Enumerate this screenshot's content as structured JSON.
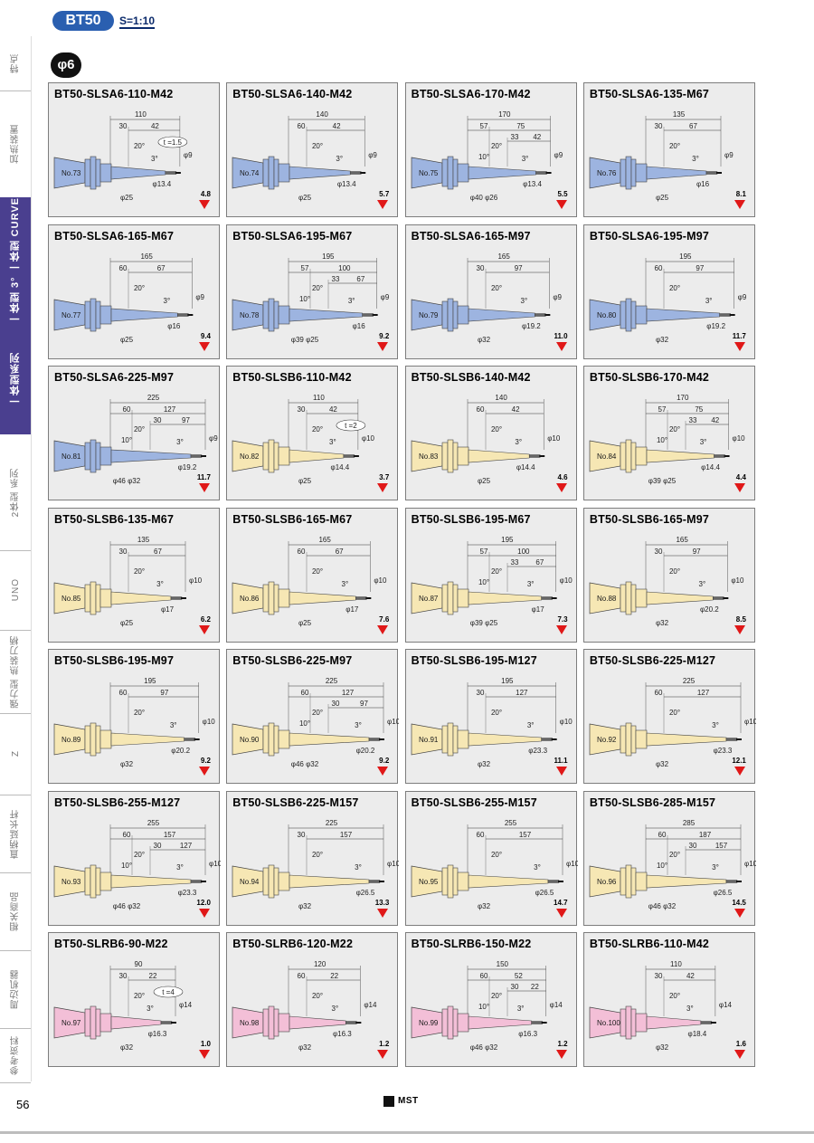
{
  "header": {
    "series": "BT50",
    "scale": "S=1:10",
    "diameter_badge": "φ6"
  },
  "side_tabs": [
    {
      "label": "特点",
      "active": false
    },
    {
      "label": "加热装置",
      "active": false
    },
    {
      "label": "一体型 3° 一体型 CURVE",
      "active": true
    },
    {
      "label": "一体型系列",
      "active": true
    },
    {
      "label": "2体型 系列",
      "active": false
    },
    {
      "label": "UNO",
      "active": false
    },
    {
      "label": "强力型 热装刀柄",
      "active": false
    },
    {
      "label": "Z",
      "active": false
    },
    {
      "label": "直柄延长杆",
      "active": false
    },
    {
      "label": "相关商品",
      "active": false
    },
    {
      "label": "周边机器",
      "active": false
    },
    {
      "label": "参考资料",
      "active": false
    }
  ],
  "cards": [
    {
      "title": "BT50-SLSA6-110-M42",
      "no": "No.73",
      "weight": "4.8",
      "color": "#9db4e0",
      "L": "110",
      "segs": [
        "30",
        "42"
      ],
      "d1": "φ9",
      "d2": "φ13.4",
      "d3": "φ25",
      "t": "t =1.5"
    },
    {
      "title": "BT50-SLSA6-140-M42",
      "no": "No.74",
      "weight": "5.7",
      "color": "#9db4e0",
      "L": "140",
      "segs": [
        "60",
        "42"
      ],
      "d1": "φ9",
      "d2": "φ13.4",
      "d3": "φ25",
      "t": ""
    },
    {
      "title": "BT50-SLSA6-170-M42",
      "no": "No.75",
      "weight": "5.5",
      "color": "#9db4e0",
      "L": "170",
      "segs": [
        "57",
        "75",
        "33",
        "42"
      ],
      "d1": "φ9",
      "d2": "φ13.4",
      "d3": "φ40 φ26",
      "t": ""
    },
    {
      "title": "BT50-SLSA6-135-M67",
      "no": "No.76",
      "weight": "8.1",
      "color": "#9db4e0",
      "L": "135",
      "segs": [
        "30",
        "67"
      ],
      "d1": "φ9",
      "d2": "φ16",
      "d3": "φ25",
      "t": ""
    },
    {
      "title": "BT50-SLSA6-165-M67",
      "no": "No.77",
      "weight": "9.4",
      "color": "#9db4e0",
      "L": "165",
      "segs": [
        "60",
        "67"
      ],
      "d1": "φ9",
      "d2": "φ16",
      "d3": "φ25",
      "t": ""
    },
    {
      "title": "BT50-SLSA6-195-M67",
      "no": "No.78",
      "weight": "9.2",
      "color": "#9db4e0",
      "L": "195",
      "segs": [
        "57",
        "100",
        "33",
        "67"
      ],
      "d1": "φ9",
      "d2": "φ16",
      "d3": "φ39 φ25",
      "t": ""
    },
    {
      "title": "BT50-SLSA6-165-M97",
      "no": "No.79",
      "weight": "11.0",
      "color": "#9db4e0",
      "L": "165",
      "segs": [
        "30",
        "97"
      ],
      "d1": "φ9",
      "d2": "φ19.2",
      "d3": "φ32",
      "t": ""
    },
    {
      "title": "BT50-SLSA6-195-M97",
      "no": "No.80",
      "weight": "11.7",
      "color": "#9db4e0",
      "L": "195",
      "segs": [
        "60",
        "97"
      ],
      "d1": "φ9",
      "d2": "φ19.2",
      "d3": "φ32",
      "t": ""
    },
    {
      "title": "BT50-SLSA6-225-M97",
      "no": "No.81",
      "weight": "11.7",
      "color": "#9db4e0",
      "L": "225",
      "segs": [
        "60",
        "127",
        "30",
        "97"
      ],
      "d1": "φ9",
      "d2": "φ19.2",
      "d3": "φ46 φ32",
      "t": ""
    },
    {
      "title": "BT50-SLSB6-110-M42",
      "no": "No.82",
      "weight": "3.7",
      "color": "#f6e7b4",
      "L": "110",
      "segs": [
        "30",
        "42"
      ],
      "d1": "φ10",
      "d2": "φ14.4",
      "d3": "φ25",
      "t": "t =2"
    },
    {
      "title": "BT50-SLSB6-140-M42",
      "no": "No.83",
      "weight": "4.6",
      "color": "#f6e7b4",
      "L": "140",
      "segs": [
        "60",
        "42"
      ],
      "d1": "φ10",
      "d2": "φ14.4",
      "d3": "φ25",
      "t": ""
    },
    {
      "title": "BT50-SLSB6-170-M42",
      "no": "No.84",
      "weight": "4.4",
      "color": "#f6e7b4",
      "L": "170",
      "segs": [
        "57",
        "75",
        "33",
        "42"
      ],
      "d1": "φ10",
      "d2": "φ14.4",
      "d3": "φ39 φ25",
      "t": ""
    },
    {
      "title": "BT50-SLSB6-135-M67",
      "no": "No.85",
      "weight": "6.2",
      "color": "#f6e7b4",
      "L": "135",
      "segs": [
        "30",
        "67"
      ],
      "d1": "φ10",
      "d2": "φ17",
      "d3": "φ25",
      "t": ""
    },
    {
      "title": "BT50-SLSB6-165-M67",
      "no": "No.86",
      "weight": "7.6",
      "color": "#f6e7b4",
      "L": "165",
      "segs": [
        "60",
        "67"
      ],
      "d1": "φ10",
      "d2": "φ17",
      "d3": "φ25",
      "t": ""
    },
    {
      "title": "BT50-SLSB6-195-M67",
      "no": "No.87",
      "weight": "7.3",
      "color": "#f6e7b4",
      "L": "195",
      "segs": [
        "57",
        "100",
        "33",
        "67"
      ],
      "d1": "φ10",
      "d2": "φ17",
      "d3": "φ39 φ25",
      "t": ""
    },
    {
      "title": "BT50-SLSB6-165-M97",
      "no": "No.88",
      "weight": "8.5",
      "color": "#f6e7b4",
      "L": "165",
      "segs": [
        "30",
        "97"
      ],
      "d1": "φ10",
      "d2": "φ20.2",
      "d3": "φ32",
      "t": ""
    },
    {
      "title": "BT50-SLSB6-195-M97",
      "no": "No.89",
      "weight": "9.2",
      "color": "#f6e7b4",
      "L": "195",
      "segs": [
        "60",
        "97"
      ],
      "d1": "φ10",
      "d2": "φ20.2",
      "d3": "φ32",
      "t": ""
    },
    {
      "title": "BT50-SLSB6-225-M97",
      "no": "No.90",
      "weight": "9.2",
      "color": "#f6e7b4",
      "L": "225",
      "segs": [
        "60",
        "127",
        "30",
        "97"
      ],
      "d1": "φ10",
      "d2": "φ20.2",
      "d3": "φ46 φ32",
      "t": ""
    },
    {
      "title": "BT50-SLSB6-195-M127",
      "no": "No.91",
      "weight": "11.1",
      "color": "#f6e7b4",
      "L": "195",
      "segs": [
        "30",
        "127"
      ],
      "d1": "φ10",
      "d2": "φ23.3",
      "d3": "φ32",
      "t": ""
    },
    {
      "title": "BT50-SLSB6-225-M127",
      "no": "No.92",
      "weight": "12.1",
      "color": "#f6e7b4",
      "L": "225",
      "segs": [
        "60",
        "127"
      ],
      "d1": "φ10",
      "d2": "φ23.3",
      "d3": "φ32",
      "t": ""
    },
    {
      "title": "BT50-SLSB6-255-M127",
      "no": "No.93",
      "weight": "12.0",
      "color": "#f6e7b4",
      "L": "255",
      "segs": [
        "60",
        "157",
        "30",
        "127"
      ],
      "d1": "φ10",
      "d2": "φ23.3",
      "d3": "φ46 φ32",
      "t": ""
    },
    {
      "title": "BT50-SLSB6-225-M157",
      "no": "No.94",
      "weight": "13.3",
      "color": "#f6e7b4",
      "L": "225",
      "segs": [
        "30",
        "157"
      ],
      "d1": "φ10",
      "d2": "φ26.5",
      "d3": "φ32",
      "t": ""
    },
    {
      "title": "BT50-SLSB6-255-M157",
      "no": "No.95",
      "weight": "14.7",
      "color": "#f6e7b4",
      "L": "255",
      "segs": [
        "60",
        "157"
      ],
      "d1": "φ10",
      "d2": "φ26.5",
      "d3": "φ32",
      "t": ""
    },
    {
      "title": "BT50-SLSB6-285-M157",
      "no": "No.96",
      "weight": "14.5",
      "color": "#f6e7b4",
      "L": "285",
      "segs": [
        "60",
        "187",
        "30",
        "157"
      ],
      "d1": "φ10",
      "d2": "φ26.5",
      "d3": "φ46 φ32",
      "t": ""
    },
    {
      "title": "BT50-SLRB6-90-M22",
      "no": "No.97",
      "weight": "1.0",
      "color": "#f3bfd7",
      "L": "90",
      "segs": [
        "30",
        "22"
      ],
      "d1": "φ14",
      "d2": "φ16.3",
      "d3": "φ32",
      "t": "t =4"
    },
    {
      "title": "BT50-SLRB6-120-M22",
      "no": "No.98",
      "weight": "1.2",
      "color": "#f3bfd7",
      "L": "120",
      "segs": [
        "60",
        "22"
      ],
      "d1": "φ14",
      "d2": "φ16.3",
      "d3": "φ32",
      "t": ""
    },
    {
      "title": "BT50-SLRB6-150-M22",
      "no": "No.99",
      "weight": "1.2",
      "color": "#f3bfd7",
      "L": "150",
      "segs": [
        "60",
        "52",
        "30",
        "22"
      ],
      "d1": "φ14",
      "d2": "φ16.3",
      "d3": "φ46 φ32",
      "t": ""
    },
    {
      "title": "BT50-SLRB6-110-M42",
      "no": "No.100",
      "weight": "1.6",
      "color": "#f3bfd7",
      "L": "110",
      "segs": [
        "30",
        "42"
      ],
      "d1": "φ14",
      "d2": "φ18.4",
      "d3": "φ32",
      "t": ""
    }
  ],
  "angles": {
    "taper": "20°",
    "tip": "3°",
    "neck": "10°"
  },
  "footer": {
    "page": "56",
    "logo": "MST"
  }
}
